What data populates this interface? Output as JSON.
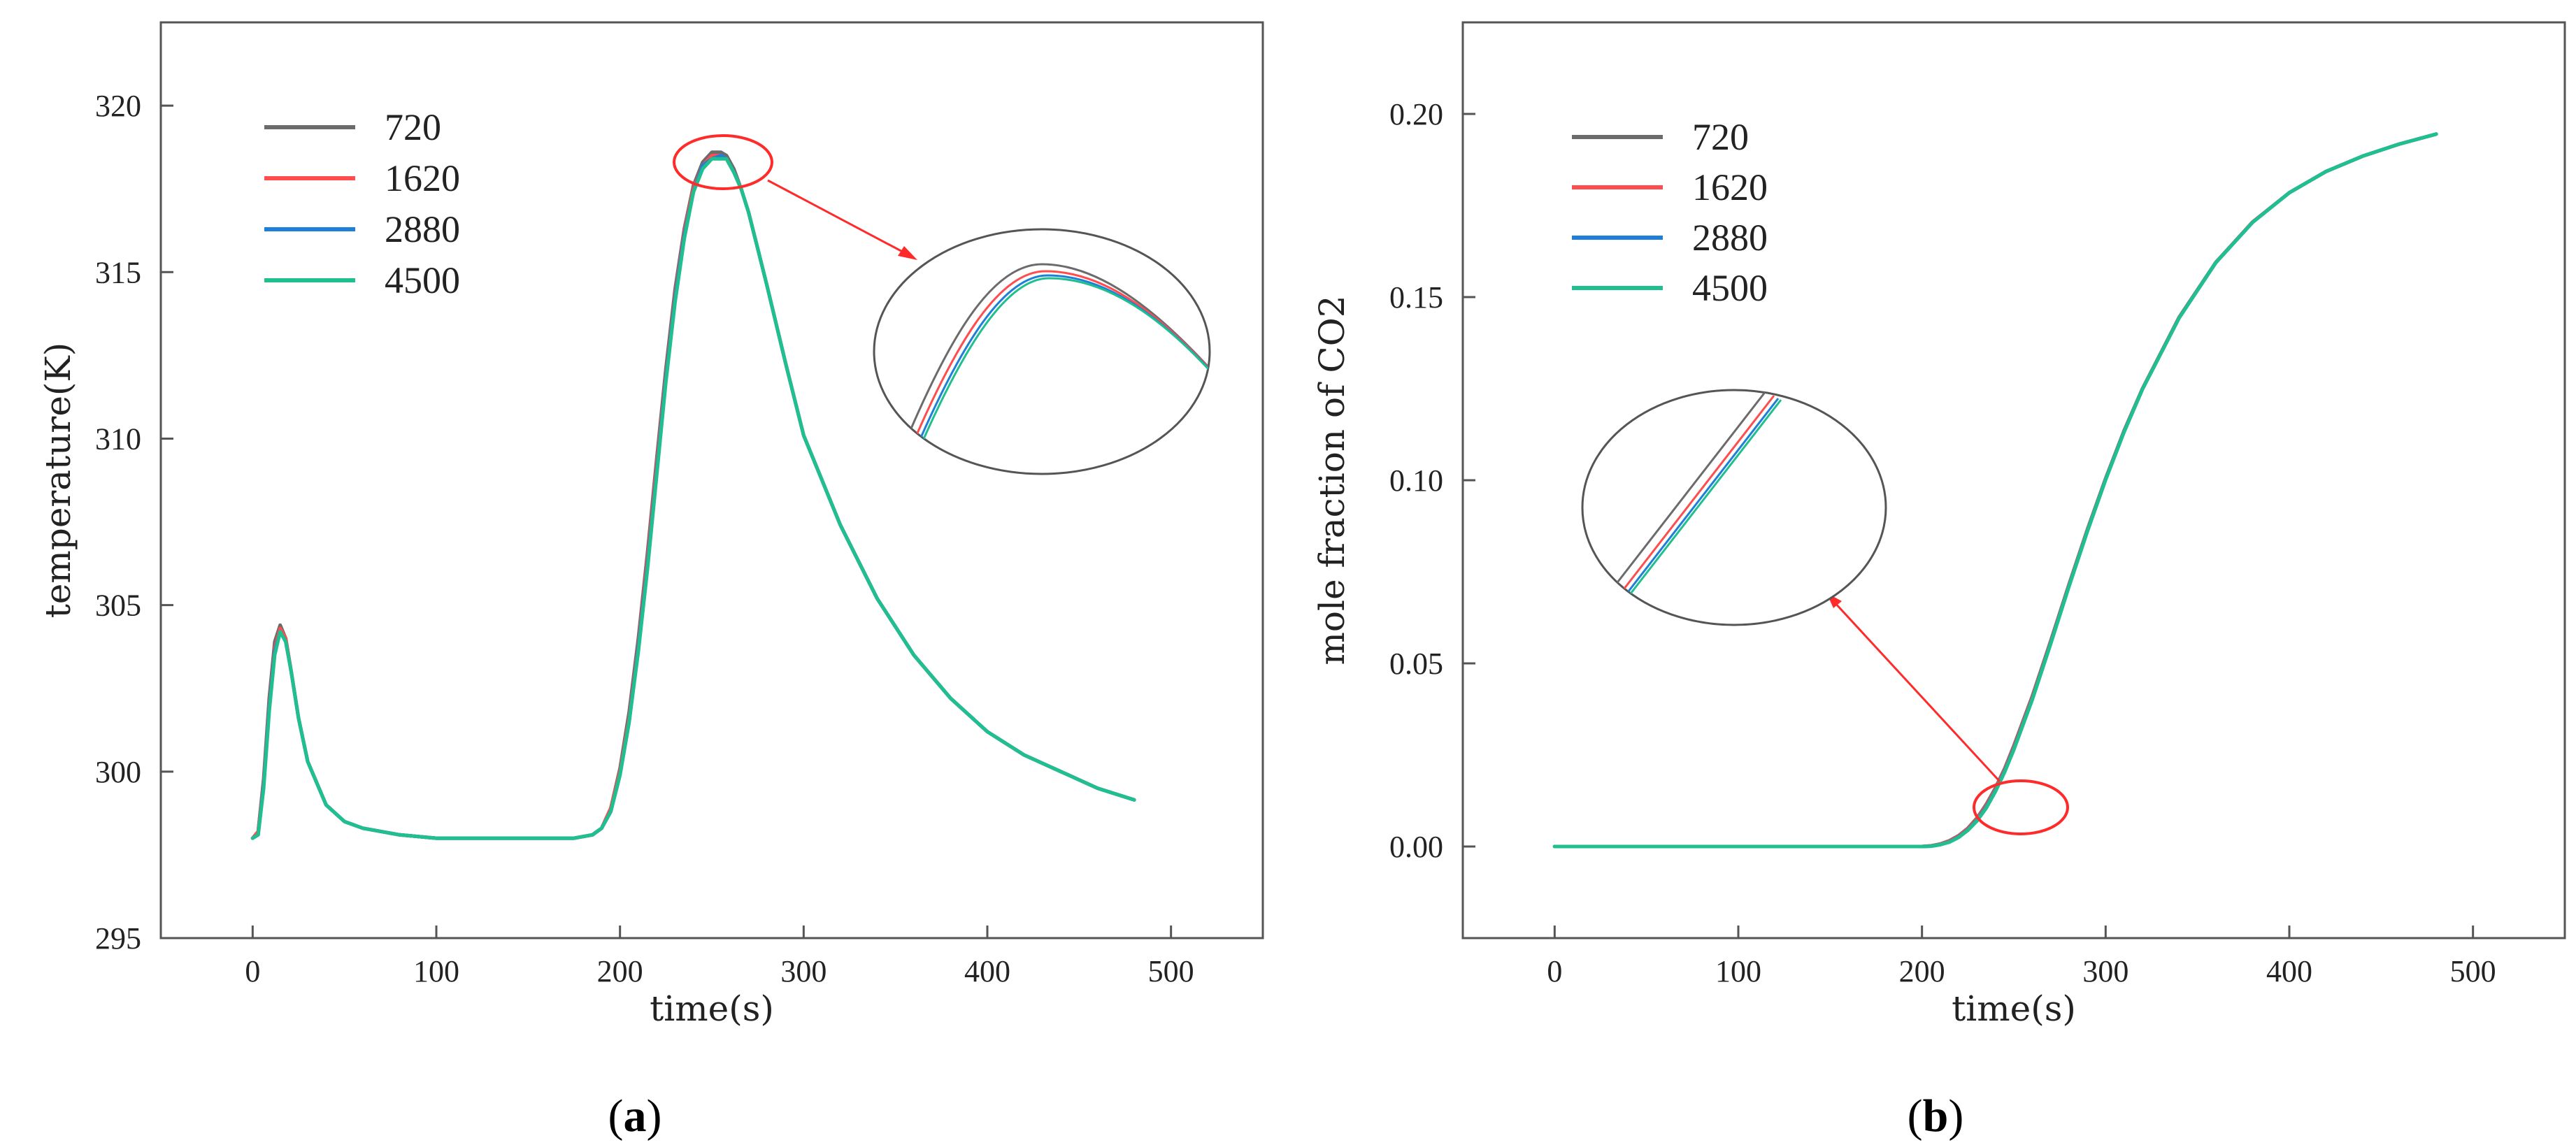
{
  "chart_data": [
    {
      "type": "line",
      "panel_label": {
        "open": "(",
        "letter": "a",
        "close": ")"
      },
      "xlabel": "time(s)",
      "ylabel": "temperature(K)",
      "xlim": [
        -50,
        550
      ],
      "ylim": [
        295,
        322.5
      ],
      "xticks": [
        0,
        100,
        200,
        300,
        400,
        500
      ],
      "yticks": [
        295,
        300,
        305,
        310,
        315,
        320
      ],
      "legend_position": "top-left",
      "annotation": "zoomed inset of the temperature peak near t=255 s, highlighted by a red ellipse and arrow",
      "x": [
        0,
        3,
        6,
        9,
        12,
        15,
        18,
        21,
        25,
        30,
        40,
        50,
        60,
        80,
        100,
        120,
        150,
        175,
        185,
        190,
        195,
        200,
        205,
        210,
        215,
        220,
        225,
        230,
        235,
        240,
        245,
        250,
        255,
        258,
        262,
        266,
        270,
        275,
        280,
        290,
        300,
        320,
        340,
        360,
        380,
        400,
        420,
        440,
        460,
        480
      ],
      "series": [
        {
          "name": "720",
          "color": "#6b6b6b",
          "y": [
            298.0,
            298.2,
            299.8,
            302.2,
            303.9,
            304.4,
            304.0,
            303.0,
            301.6,
            300.3,
            299.0,
            298.5,
            298.3,
            298.1,
            298.0,
            298.0,
            298.0,
            298.0,
            298.1,
            298.3,
            298.9,
            300.1,
            301.8,
            304.0,
            306.6,
            309.4,
            312.1,
            314.5,
            316.3,
            317.6,
            318.3,
            318.6,
            318.6,
            318.5,
            318.1,
            317.5,
            316.8,
            315.7,
            314.6,
            312.3,
            310.1,
            307.4,
            305.2,
            303.5,
            302.2,
            301.2,
            300.5,
            300.0,
            299.5,
            299.15
          ]
        },
        {
          "name": "1620",
          "color": "#ff4d4d",
          "y": [
            298.0,
            298.2,
            299.7,
            302.0,
            303.7,
            304.3,
            304.0,
            303.0,
            301.6,
            300.3,
            299.0,
            298.5,
            298.3,
            298.1,
            298.0,
            298.0,
            298.0,
            298.0,
            298.1,
            298.3,
            298.9,
            300.0,
            301.6,
            303.8,
            306.4,
            309.2,
            311.9,
            314.3,
            316.2,
            317.5,
            318.2,
            318.5,
            318.5,
            318.4,
            318.0,
            317.5,
            316.8,
            315.7,
            314.6,
            312.3,
            310.1,
            307.4,
            305.2,
            303.5,
            302.2,
            301.2,
            300.5,
            300.0,
            299.5,
            299.15
          ]
        },
        {
          "name": "2880",
          "color": "#1e7fd8",
          "y": [
            298.0,
            298.1,
            299.6,
            301.9,
            303.6,
            304.2,
            303.9,
            303.0,
            301.6,
            300.3,
            299.0,
            298.5,
            298.3,
            298.1,
            298.0,
            298.0,
            298.0,
            298.0,
            298.1,
            298.3,
            298.8,
            299.9,
            301.5,
            303.7,
            306.2,
            309.0,
            311.8,
            314.2,
            316.1,
            317.4,
            318.2,
            318.4,
            318.5,
            318.4,
            318.0,
            317.5,
            316.8,
            315.7,
            314.6,
            312.3,
            310.1,
            307.4,
            305.2,
            303.5,
            302.2,
            301.2,
            300.5,
            300.0,
            299.5,
            299.15
          ]
        },
        {
          "name": "4500",
          "color": "#1fbf8f",
          "y": [
            298.0,
            298.1,
            299.5,
            301.8,
            303.5,
            304.2,
            303.9,
            303.0,
            301.6,
            300.3,
            299.0,
            298.5,
            298.3,
            298.1,
            298.0,
            298.0,
            298.0,
            298.0,
            298.1,
            298.3,
            298.8,
            299.9,
            301.5,
            303.6,
            306.1,
            308.9,
            311.7,
            314.1,
            316.0,
            317.4,
            318.1,
            318.4,
            318.4,
            318.4,
            318.0,
            317.5,
            316.8,
            315.7,
            314.6,
            312.3,
            310.1,
            307.4,
            305.2,
            303.5,
            302.2,
            301.2,
            300.5,
            300.0,
            299.5,
            299.15
          ]
        }
      ]
    },
    {
      "type": "line",
      "panel_label": {
        "open": "(",
        "letter": "b",
        "close": ")"
      },
      "xlabel": "time(s)",
      "ylabel": "mole fraction of CO2",
      "xlim": [
        -50,
        550
      ],
      "ylim": [
        -0.025,
        0.225
      ],
      "xticks": [
        0,
        100,
        200,
        300,
        400,
        500
      ],
      "yticks": [
        "0.00",
        "0.05",
        "0.10",
        "0.15",
        "0.20"
      ],
      "legend_position": "top-left",
      "annotation": "zoomed inset of the curve onset near t=230 s, highlighted by a red ellipse and arrow",
      "x": [
        0,
        50,
        100,
        150,
        200,
        205,
        210,
        215,
        220,
        225,
        230,
        235,
        240,
        245,
        250,
        260,
        270,
        280,
        290,
        300,
        310,
        320,
        340,
        360,
        380,
        400,
        420,
        440,
        460,
        480
      ],
      "series": [
        {
          "name": "720",
          "color": "#6b6b6b",
          "y": [
            0,
            0,
            0,
            0,
            0.0,
            0.0002,
            0.0007,
            0.0016,
            0.003,
            0.005,
            0.0078,
            0.0115,
            0.016,
            0.0213,
            0.0275,
            0.041,
            0.056,
            0.0715,
            0.0865,
            0.1005,
            0.1135,
            0.125,
            0.1445,
            0.1595,
            0.1705,
            0.1785,
            0.1843,
            0.1885,
            0.1918,
            0.1945
          ]
        },
        {
          "name": "1620",
          "color": "#ff4d4d",
          "y": [
            0,
            0,
            0,
            0,
            0.0,
            0.0002,
            0.0006,
            0.0015,
            0.0028,
            0.0048,
            0.0075,
            0.0111,
            0.0156,
            0.0209,
            0.027,
            0.0405,
            0.0556,
            0.0712,
            0.0862,
            0.1003,
            0.1133,
            0.1249,
            0.1444,
            0.1594,
            0.1705,
            0.1785,
            0.1843,
            0.1885,
            0.1918,
            0.1945
          ]
        },
        {
          "name": "2880",
          "color": "#1e7fd8",
          "y": [
            0,
            0,
            0,
            0,
            0.0,
            0.0001,
            0.0005,
            0.0013,
            0.0026,
            0.0045,
            0.0072,
            0.0107,
            0.0152,
            0.0205,
            0.0266,
            0.0401,
            0.0553,
            0.071,
            0.086,
            0.1002,
            0.1132,
            0.1248,
            0.1443,
            0.1594,
            0.1704,
            0.1785,
            0.1843,
            0.1885,
            0.1918,
            0.1945
          ]
        },
        {
          "name": "4500",
          "color": "#1fbf8f",
          "y": [
            0,
            0,
            0,
            0,
            0.0,
            0.0001,
            0.0005,
            0.0012,
            0.0025,
            0.0044,
            0.007,
            0.0105,
            0.015,
            0.0203,
            0.0264,
            0.04,
            0.0552,
            0.0709,
            0.086,
            0.1001,
            0.1131,
            0.1248,
            0.1443,
            0.1594,
            0.1704,
            0.1785,
            0.1843,
            0.1885,
            0.1918,
            0.1945
          ]
        }
      ]
    }
  ],
  "style": {
    "axis_color": "#555555",
    "highlight_color": "#ff2a2a"
  }
}
